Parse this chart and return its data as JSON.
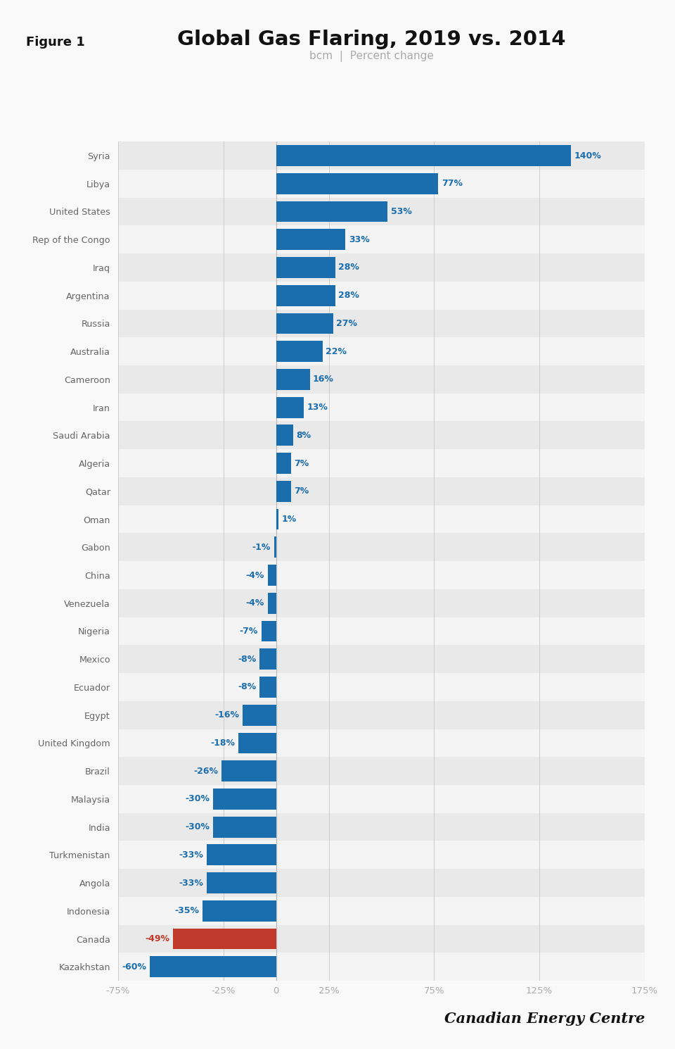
{
  "title": "Global Gas Flaring, 2019 vs. 2014",
  "subtitle": "bcm  |  Percent change",
  "figure_label": "Figure 1",
  "branding": "Canadian Energy Centre",
  "countries": [
    "Syria",
    "Libya",
    "United States",
    "Rep of the Congo",
    "Iraq",
    "Argentina",
    "Russia",
    "Australia",
    "Cameroon",
    "Iran",
    "Saudi Arabia",
    "Algeria",
    "Qatar",
    "Oman",
    "Gabon",
    "China",
    "Venezuela",
    "Nigeria",
    "Mexico",
    "Ecuador",
    "Egypt",
    "United Kingdom",
    "Brazil",
    "Malaysia",
    "India",
    "Turkmenistan",
    "Angola",
    "Indonesia",
    "Canada",
    "Kazakhstan"
  ],
  "values": [
    140,
    77,
    53,
    33,
    28,
    28,
    27,
    22,
    16,
    13,
    8,
    7,
    7,
    1,
    -1,
    -4,
    -4,
    -7,
    -8,
    -8,
    -16,
    -18,
    -26,
    -30,
    -30,
    -33,
    -33,
    -35,
    -49,
    -60
  ],
  "bar_color_default": "#1b6eae",
  "bar_color_canada": "#c0392b",
  "label_color_pos": "#1b6eae",
  "label_color_neg": "#1b6eae",
  "label_color_canada": "#c0392b",
  "bg_color_even": "#e9e9e9",
  "bg_color_odd": "#f4f4f4",
  "title_color": "#111111",
  "subtitle_color": "#aaaaaa",
  "axis_label_color": "#aaaaaa",
  "country_label_color": "#666666",
  "figure_label_bg": "#f5c800",
  "figure_label_color": "#111111",
  "xlim": [
    -75,
    175
  ],
  "xticks": [
    -75,
    -25,
    0,
    25,
    75,
    125,
    175
  ],
  "xtick_labels": [
    "-75%",
    "-25%",
    "0",
    "25%",
    "75%",
    "125%",
    "175%"
  ],
  "background_color": "#f9f9f9"
}
